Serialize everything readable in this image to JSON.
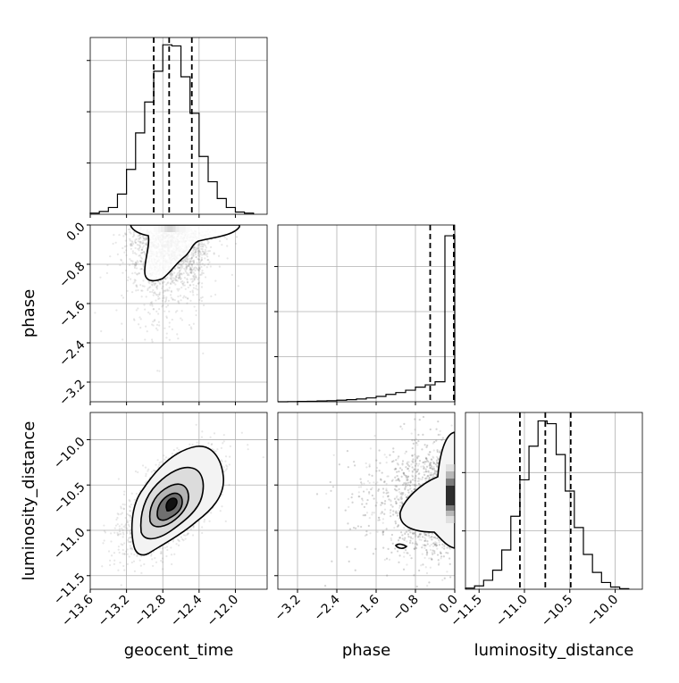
{
  "chart_data": {
    "type": "corner",
    "parameters": [
      "geocent_time",
      "phase",
      "luminosity_distance"
    ],
    "axis_labels": {
      "geocent_time": "geocent_time",
      "phase": "phase",
      "luminosity_distance": "luminosity_distance"
    },
    "ranges": {
      "geocent_time": [
        -13.6,
        -11.65
      ],
      "phase": [
        -3.6,
        0.0
      ],
      "luminosity_distance": [
        -11.65,
        -9.7
      ]
    },
    "ticks": {
      "geocent_time": [
        "-13.6",
        "-13.2",
        "-12.8",
        "-12.4",
        "-12.0"
      ],
      "geocent_time_values": [
        -13.6,
        -13.2,
        -12.8,
        -12.4,
        -12.0
      ],
      "phase": [
        "-3.2",
        "-2.4",
        "-1.6",
        "-0.8",
        "0.0"
      ],
      "phase_values": [
        -3.2,
        -2.4,
        -1.6,
        -0.8,
        0.0
      ],
      "luminosity_distance": [
        "-11.5",
        "-11.0",
        "-10.5",
        "-10.0"
      ],
      "luminosity_distance_values": [
        -11.5,
        -11.0,
        -10.5,
        -10.0
      ]
    },
    "grid": true,
    "histograms": {
      "geocent_time": {
        "bin_edges": [
          -13.6,
          -13.5,
          -13.4,
          -13.3,
          -13.2,
          -13.1,
          -13.0,
          -12.9,
          -12.8,
          -12.7,
          -12.6,
          -12.5,
          -12.4,
          -12.3,
          -12.2,
          -12.1,
          -12.0,
          -11.9,
          -11.8
        ],
        "counts": [
          2,
          5,
          12,
          36,
          80,
          145,
          200,
          255,
          302,
          300,
          245,
          180,
          103,
          58,
          28,
          12,
          4,
          2
        ],
        "ymax": 315,
        "quantiles": [
          -12.9,
          -12.73,
          -12.48
        ]
      },
      "phase": {
        "bin_edges": [
          -3.6,
          -3.4,
          -3.2,
          -3.0,
          -2.8,
          -2.6,
          -2.4,
          -2.2,
          -2.0,
          -1.8,
          -1.6,
          -1.4,
          -1.2,
          -1.0,
          -0.8,
          -0.6,
          -0.4,
          -0.2,
          0.0
        ],
        "counts": [
          0,
          1,
          2,
          3,
          5,
          7,
          10,
          14,
          18,
          25,
          35,
          48,
          60,
          75,
          95,
          110,
          130,
          1080
        ],
        "ymax": 1150,
        "quantiles": [
          -0.5,
          -0.02
        ]
      },
      "luminosity_distance": {
        "bin_edges": [
          -11.65,
          -11.55,
          -11.45,
          -11.35,
          -11.25,
          -11.15,
          -11.05,
          -10.95,
          -10.85,
          -10.75,
          -10.65,
          -10.55,
          -10.45,
          -10.35,
          -10.25,
          -10.15,
          -10.05,
          -9.95,
          -9.85
        ],
        "counts": [
          2,
          6,
          16,
          34,
          70,
          130,
          195,
          255,
          300,
          295,
          240,
          175,
          110,
          62,
          30,
          12,
          4,
          1
        ],
        "ymax": 315,
        "quantiles": [
          -11.05,
          -10.77,
          -10.49
        ]
      }
    }
  }
}
